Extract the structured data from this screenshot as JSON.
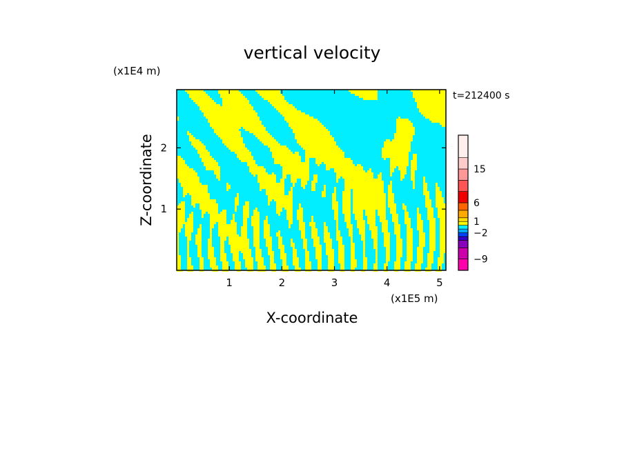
{
  "chart_data": {
    "type": "heatmap",
    "title": "vertical velocity",
    "xlabel": "X-coordinate",
    "ylabel": "Z-coordinate",
    "x_unit": "(x1E5 m)",
    "y_unit": "(x1E4 m)",
    "time_label": "t=212400 s",
    "xlim": [
      0,
      5.12
    ],
    "ylim": [
      0,
      2.95
    ],
    "x_ticks": [
      1,
      2,
      3,
      4,
      5
    ],
    "y_ticks": [
      1,
      2
    ],
    "x_tick_labels": [
      "1",
      "2",
      "3",
      "4",
      "5"
    ],
    "y_tick_labels": [
      "1",
      "2"
    ],
    "field_colors": {
      "positive": "#ffff00",
      "negative": "#00eeff"
    },
    "colorbar": {
      "min": -12,
      "max": 24,
      "tick_values": [
        15,
        6,
        1,
        -2,
        -9
      ],
      "tick_labels": [
        "15",
        "6",
        "1",
        "−2",
        "−9"
      ],
      "bands": [
        {
          "from": -12,
          "to": -9,
          "color": "#ff00aa"
        },
        {
          "from": -9,
          "to": -6,
          "color": "#cc00aa"
        },
        {
          "from": -6,
          "to": -4,
          "color": "#8800bb"
        },
        {
          "from": -4,
          "to": -3,
          "color": "#3300cc"
        },
        {
          "from": -3,
          "to": -2,
          "color": "#0044ff"
        },
        {
          "from": -2,
          "to": -1,
          "color": "#00aaff"
        },
        {
          "from": -1,
          "to": 0,
          "color": "#00eeff"
        },
        {
          "from": 0,
          "to": 1,
          "color": "#ffff00"
        },
        {
          "from": 1,
          "to": 2,
          "color": "#ffdd00"
        },
        {
          "from": 2,
          "to": 4,
          "color": "#ffaa00"
        },
        {
          "from": 4,
          "to": 6,
          "color": "#ff6600"
        },
        {
          "from": 6,
          "to": 9,
          "color": "#ee0000"
        },
        {
          "from": 9,
          "to": 12,
          "color": "#ff5555"
        },
        {
          "from": 12,
          "to": 15,
          "color": "#ff9999"
        },
        {
          "from": 15,
          "to": 18,
          "color": "#ffcccc"
        },
        {
          "from": 18,
          "to": 24,
          "color": "#ffeeee"
        }
      ]
    }
  }
}
